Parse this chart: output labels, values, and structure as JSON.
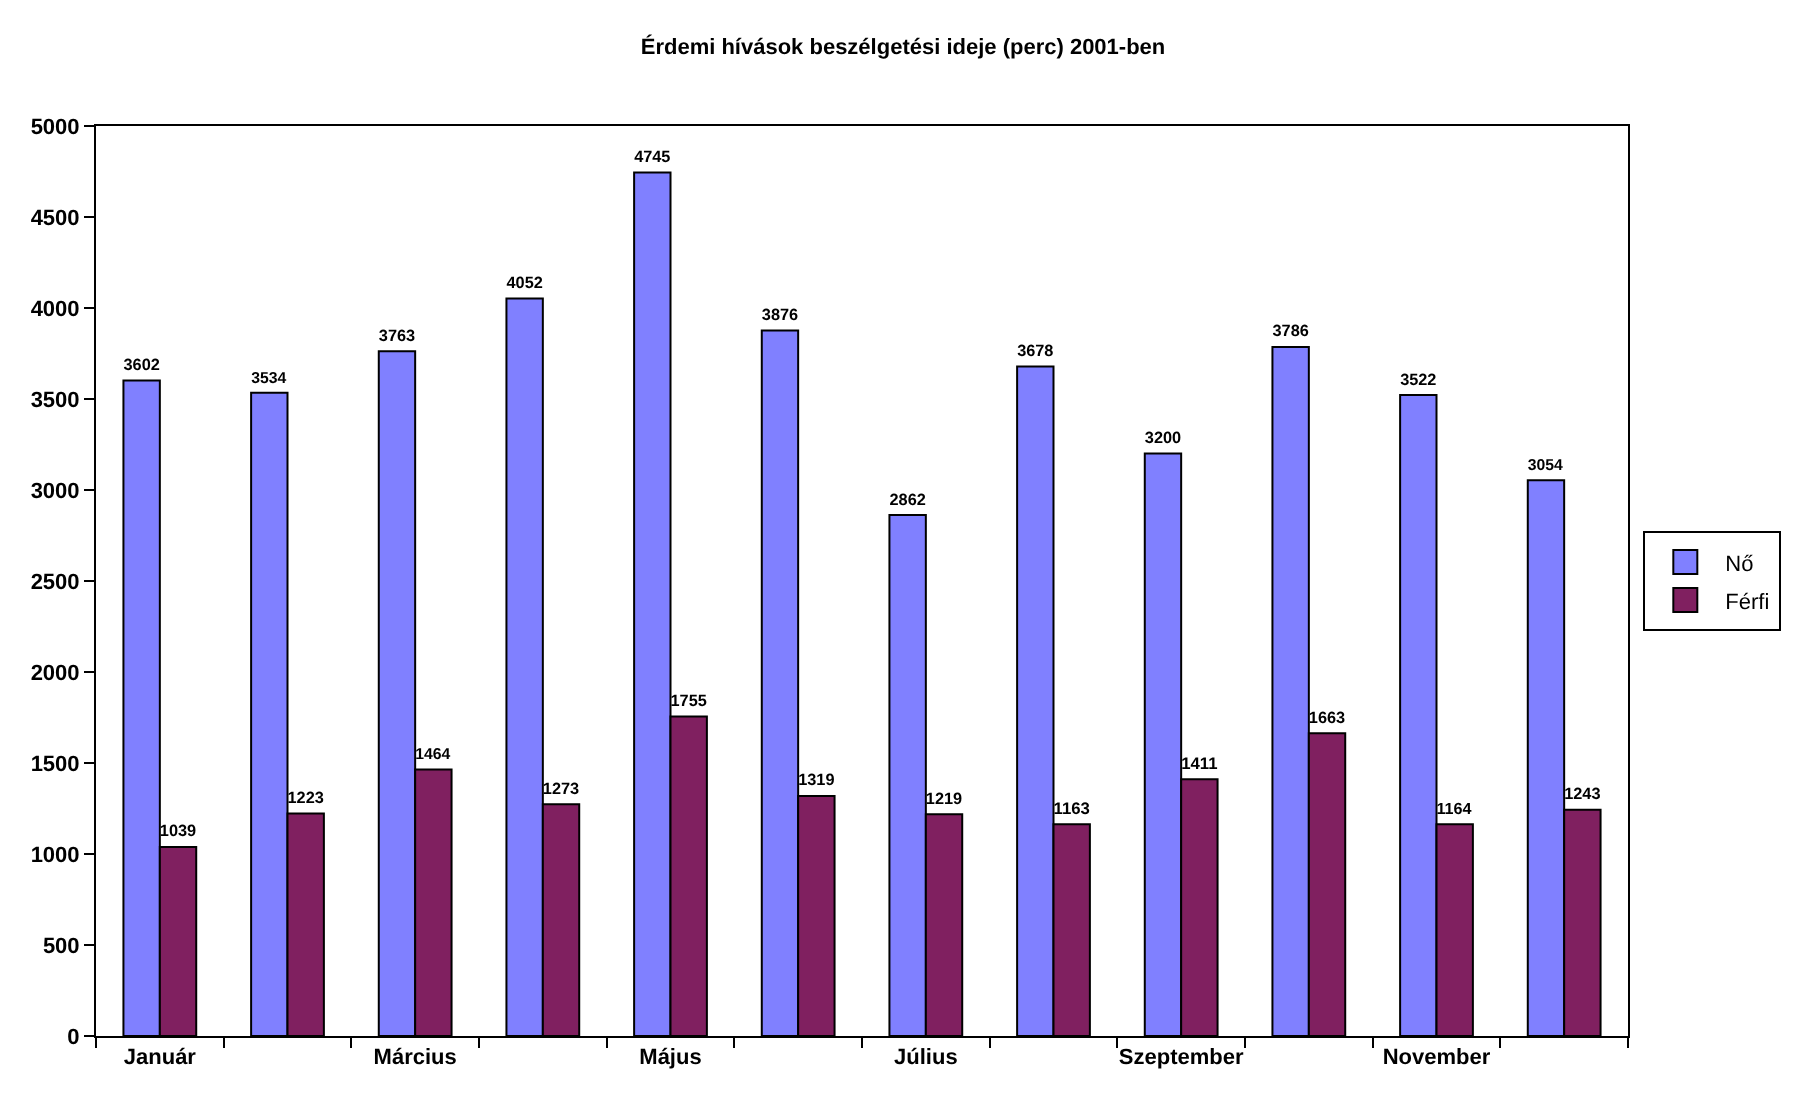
{
  "chart_data": {
    "type": "bar",
    "title": "Érdemi hívások beszélgetési ideje (perc) 2001-ben",
    "categories": [
      "Január",
      null,
      "Március",
      null,
      "Május",
      null,
      "Július",
      null,
      "Szeptember",
      null,
      "November",
      null
    ],
    "series": [
      {
        "name": "Nő",
        "color": "#8080ff",
        "values": [
          3602,
          3534,
          3763,
          4052,
          4745,
          3876,
          2862,
          3678,
          3200,
          3786,
          3522,
          3054
        ]
      },
      {
        "name": "Férfi",
        "color": "#802060",
        "values": [
          1039,
          1223,
          1464,
          1273,
          1755,
          1319,
          1219,
          1163,
          1411,
          1663,
          1164,
          1243
        ]
      }
    ],
    "ylim": [
      0,
      5000
    ],
    "yticks": [
      0,
      500,
      1000,
      1500,
      2000,
      2500,
      3000,
      3500,
      4000,
      4500,
      5000
    ],
    "data_labels": true,
    "grid": false,
    "legend": "right"
  }
}
